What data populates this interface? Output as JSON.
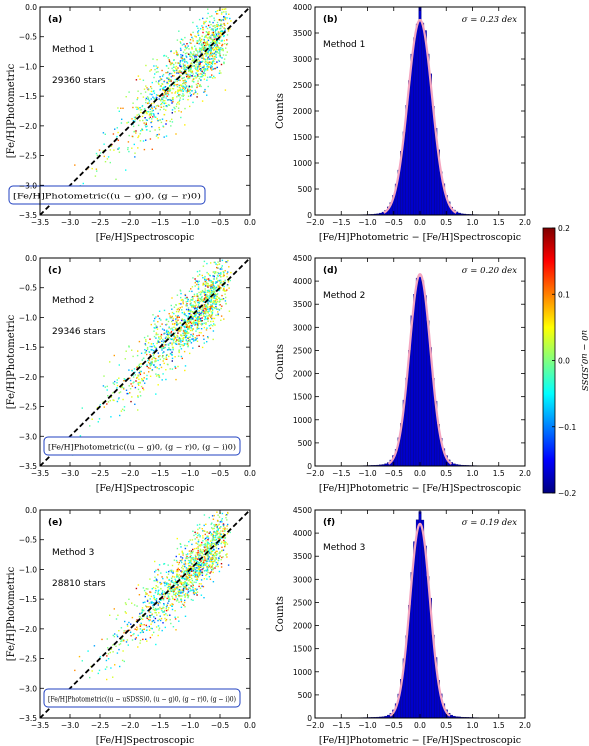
{
  "chart_data": [
    {
      "type": "scatter",
      "panel_label": "(a)",
      "method": "Method 1",
      "count_text": "29360 stars",
      "formula": "[Fe/H]Photometric((u − g)0, (g − r)0)",
      "xlabel": "[Fe/H]Spectroscopic",
      "ylabel": "[Fe/H]Photometric",
      "xlim": [
        -3.5,
        0.0
      ],
      "ylim": [
        -3.5,
        0.0
      ],
      "x_ticks": [
        "−3.5",
        "−3.0",
        "−2.5",
        "−2.0",
        "−1.5",
        "−1.0",
        "−0.5",
        "0.0"
      ],
      "y_ticks": [
        "−3.5",
        "−3.0",
        "−2.5",
        "−2.0",
        "−1.5",
        "−1.0",
        "−0.5",
        "0.0"
      ],
      "one_to_one_line": true,
      "scatter_sigma": 0.23
    },
    {
      "type": "histogram",
      "panel_label": "(b)",
      "method": "Method 1",
      "sigma_text": "σ = 0.23 dex",
      "sigma": 0.23,
      "xlabel": "[Fe/H]Photometric − [Fe/H]Spectroscopic",
      "ylabel": "Counts",
      "xlim": [
        -2.0,
        2.0
      ],
      "ylim": [
        0,
        4000
      ],
      "x_ticks": [
        "−2.0",
        "−1.5",
        "−1.0",
        "−0.5",
        "0.0",
        "0.5",
        "1.0",
        "1.5",
        "2.0"
      ],
      "y_ticks": [
        "0",
        "500",
        "1000",
        "1500",
        "2000",
        "2500",
        "3000",
        "3500",
        "4000"
      ],
      "peak": 3800,
      "gaussian_fit": {
        "mu": 0.0,
        "sigma": 0.23,
        "amplitude": 3750
      }
    },
    {
      "type": "scatter",
      "panel_label": "(c)",
      "method": "Method 2",
      "count_text": "29346 stars",
      "formula": "[Fe/H]Photometric((u − g)0, (g − r)0, (g − i)0)",
      "xlabel": "[Fe/H]Spectroscopic",
      "ylabel": "[Fe/H]Photometric",
      "xlim": [
        -3.5,
        0.0
      ],
      "ylim": [
        -3.5,
        0.0
      ],
      "x_ticks": [
        "−3.5",
        "−3.0",
        "−2.5",
        "−2.0",
        "−1.5",
        "−1.0",
        "−0.5",
        "0.0"
      ],
      "y_ticks": [
        "−3.5",
        "−3.0",
        "−2.5",
        "−2.0",
        "−1.5",
        "−1.0",
        "−0.5",
        "0.0"
      ],
      "one_to_one_line": true,
      "scatter_sigma": 0.2
    },
    {
      "type": "histogram",
      "panel_label": "(d)",
      "method": "Method 2",
      "sigma_text": "σ = 0.20 dex",
      "sigma": 0.2,
      "xlabel": "[Fe/H]Photometric − [Fe/H]Spectroscopic",
      "ylabel": "Counts",
      "xlim": [
        -2.0,
        2.0
      ],
      "ylim": [
        0,
        4500
      ],
      "x_ticks": [
        "−2.0",
        "−1.5",
        "−1.0",
        "−0.5",
        "0.0",
        "0.5",
        "1.0",
        "1.5",
        "2.0"
      ],
      "y_ticks": [
        "0",
        "500",
        "1000",
        "1500",
        "2000",
        "2500",
        "3000",
        "3500",
        "4000",
        "4500"
      ],
      "peak": 4150,
      "gaussian_fit": {
        "mu": 0.0,
        "sigma": 0.2,
        "amplitude": 4150
      }
    },
    {
      "type": "scatter",
      "panel_label": "(e)",
      "method": "Method 3",
      "count_text": "28810 stars",
      "formula": "[Fe/H]Photometric((u − uSDSS)0, (u − g)0, (g − r)0, (g − i)0)",
      "xlabel": "[Fe/H]Spectroscopic",
      "ylabel": "[Fe/H]Photometric",
      "xlim": [
        -3.5,
        0.0
      ],
      "ylim": [
        -3.5,
        0.0
      ],
      "x_ticks": [
        "−3.5",
        "−3.0",
        "−2.5",
        "−2.0",
        "−1.5",
        "−1.0",
        "−0.5",
        "0.0"
      ],
      "y_ticks": [
        "−3.5",
        "−3.0",
        "−2.5",
        "−2.0",
        "−1.5",
        "−1.0",
        "−0.5",
        "0.0"
      ],
      "one_to_one_line": true,
      "scatter_sigma": 0.19
    },
    {
      "type": "histogram",
      "panel_label": "(f)",
      "method": "Method 3",
      "sigma_text": "σ = 0.19 dex",
      "sigma": 0.19,
      "xlabel": "[Fe/H]Photometric − [Fe/H]Spectroscopic",
      "ylabel": "Counts",
      "xlim": [
        -2.0,
        2.0
      ],
      "ylim": [
        0,
        4500
      ],
      "x_ticks": [
        "−2.0",
        "−1.5",
        "−1.0",
        "−0.5",
        "0.0",
        "0.5",
        "1.0",
        "1.5",
        "2.0"
      ],
      "y_ticks": [
        "0",
        "500",
        "1000",
        "1500",
        "2000",
        "2500",
        "3000",
        "3500",
        "4000",
        "4500"
      ],
      "peak": 4300,
      "gaussian_fit": {
        "mu": 0.0,
        "sigma": 0.19,
        "amplitude": 4200
      }
    }
  ],
  "colorbar": {
    "label": "u0 − u0,SDSS",
    "range": [
      -0.2,
      0.2
    ],
    "ticks": [
      "0.2",
      "0.1",
      "0.0",
      "−0.1",
      "−0.2"
    ],
    "colormap": "jet"
  },
  "colors": {
    "hist_bar": "#0000cc",
    "fit_line": "#f4a6c0",
    "formula_box": "#2040c0",
    "diag_line": "#000000"
  }
}
